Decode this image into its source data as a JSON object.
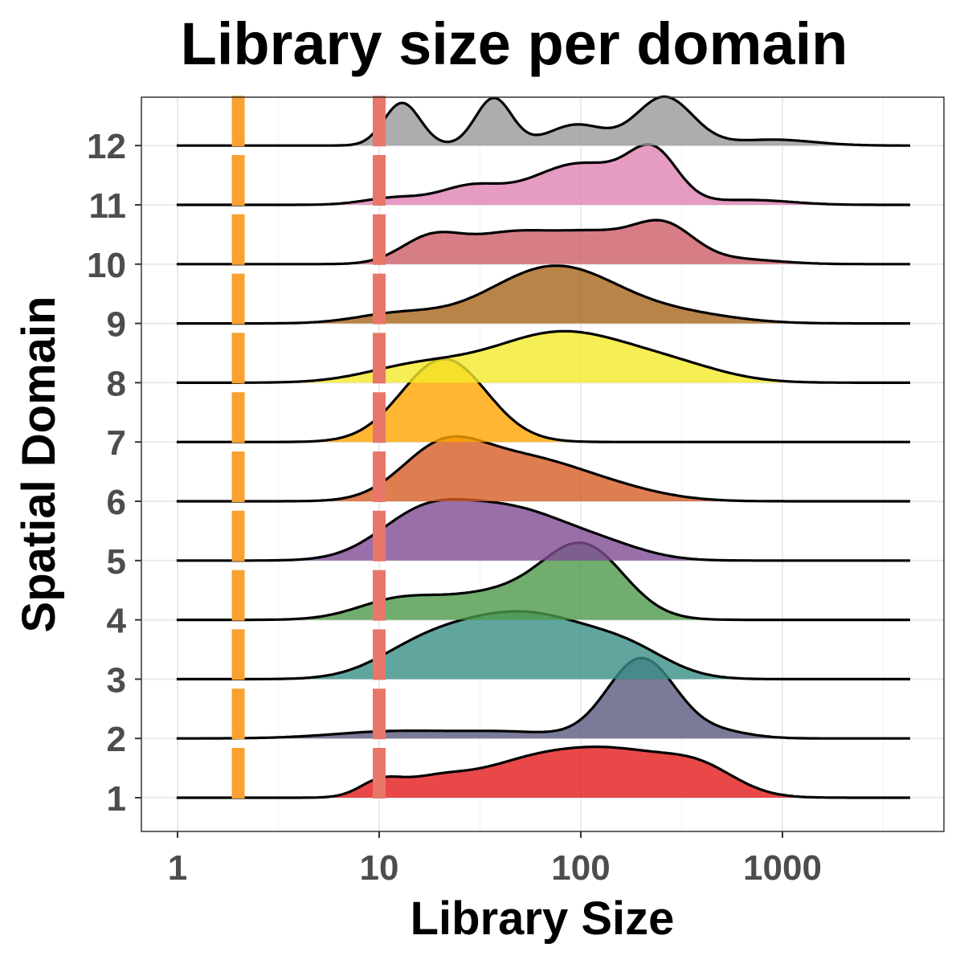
{
  "chart_data": {
    "type": "ridgeline",
    "title": "Library size per domain",
    "xlabel": "Library Size",
    "ylabel": "Spatial Domain",
    "x_scale": "log10",
    "xlim": [
      0.68,
      7000
    ],
    "x_ticks": [
      1,
      10,
      100,
      1000
    ],
    "x_tick_labels": [
      "1",
      "10",
      "100",
      "1000"
    ],
    "grid": true,
    "legend": "none",
    "categories": [
      "1",
      "2",
      "3",
      "4",
      "5",
      "6",
      "7",
      "8",
      "9",
      "10",
      "11",
      "12"
    ],
    "threshold_lines": [
      {
        "value": 2,
        "color": "#F8A131"
      },
      {
        "value": 10,
        "color": "#E8776A"
      }
    ],
    "series": [
      {
        "name": "1",
        "color": "#E41A1C",
        "peaks": [
          [
            10,
            0.22,
            0.1
          ],
          [
            18,
            0.28,
            0.18
          ],
          [
            50,
            0.45,
            0.25
          ],
          [
            150,
            0.75,
            0.3
          ],
          [
            400,
            0.35,
            0.18
          ]
        ]
      },
      {
        "name": "2",
        "color": "#59597F",
        "peaks": [
          [
            12,
            0.12,
            0.3
          ],
          [
            45,
            0.1,
            0.25
          ],
          [
            200,
            1.35,
            0.17
          ],
          [
            500,
            0.1,
            0.15
          ]
        ]
      },
      {
        "name": "3",
        "color": "#3A8F87",
        "peaks": [
          [
            15,
            0.38,
            0.22
          ],
          [
            30,
            0.55,
            0.25
          ],
          [
            70,
            0.85,
            0.28
          ],
          [
            180,
            0.35,
            0.2
          ]
        ]
      },
      {
        "name": "4",
        "color": "#4E9A4A",
        "peaks": [
          [
            12,
            0.28,
            0.2
          ],
          [
            40,
            0.45,
            0.3
          ],
          [
            105,
            1.12,
            0.2
          ]
        ]
      },
      {
        "name": "5",
        "color": "#7F4B93",
        "peaks": [
          [
            16,
            0.65,
            0.22
          ],
          [
            45,
            0.85,
            0.3
          ],
          [
            140,
            0.15,
            0.2
          ]
        ]
      },
      {
        "name": "6",
        "color": "#D65C24",
        "peaks": [
          [
            20,
            0.75,
            0.2
          ],
          [
            50,
            0.7,
            0.3
          ],
          [
            150,
            0.15,
            0.25
          ]
        ]
      },
      {
        "name": "7",
        "color": "#FFA500",
        "peaks": [
          [
            21,
            1.4,
            0.21
          ]
        ]
      },
      {
        "name": "8",
        "color": "#F4EA2A",
        "peaks": [
          [
            15,
            0.25,
            0.25
          ],
          [
            80,
            0.85,
            0.35
          ],
          [
            300,
            0.2,
            0.25
          ]
        ]
      },
      {
        "name": "9",
        "color": "#A8651A",
        "peaks": [
          [
            12,
            0.15,
            0.2
          ],
          [
            75,
            0.97,
            0.32
          ],
          [
            350,
            0.12,
            0.25
          ]
        ]
      },
      {
        "name": "10",
        "color": "#CD5C68",
        "peaks": [
          [
            18,
            0.42,
            0.15
          ],
          [
            45,
            0.5,
            0.22
          ],
          [
            120,
            0.45,
            0.2
          ],
          [
            260,
            0.6,
            0.15
          ],
          [
            600,
            0.08,
            0.2
          ]
        ]
      },
      {
        "name": "11",
        "color": "#DE82B3",
        "peaks": [
          [
            12,
            0.12,
            0.15
          ],
          [
            28,
            0.28,
            0.15
          ],
          [
            100,
            0.7,
            0.25
          ],
          [
            230,
            0.75,
            0.12
          ],
          [
            700,
            0.08,
            0.2
          ]
        ]
      },
      {
        "name": "12",
        "color": "#999999",
        "peaks": [
          [
            13,
            0.72,
            0.09
          ],
          [
            37,
            0.8,
            0.09
          ],
          [
            95,
            0.35,
            0.14
          ],
          [
            260,
            0.82,
            0.14
          ],
          [
            900,
            0.1,
            0.2
          ]
        ]
      }
    ]
  }
}
